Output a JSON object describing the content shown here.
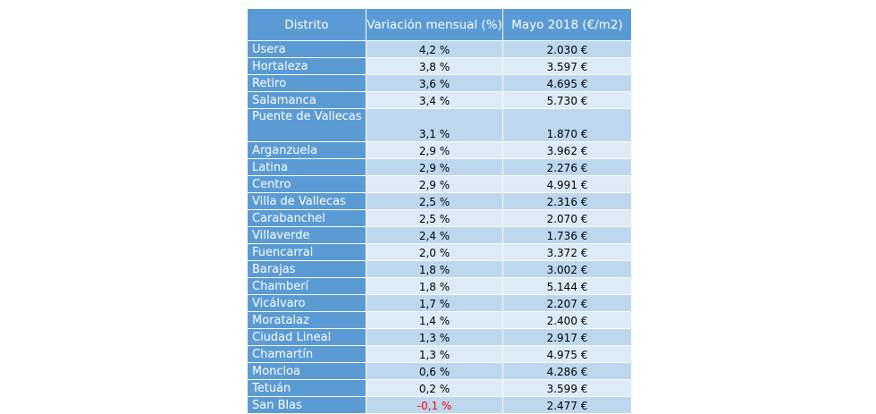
{
  "table": {
    "headers": [
      "Distrito",
      "Variación mensual (%)",
      "Mayo 2018 (€/m2)"
    ],
    "negative_color": "#ff0000",
    "header_color": "#5b9bd5",
    "rows": [
      {
        "district": "Usera",
        "variation": "4,2 %",
        "price": "2.030 €"
      },
      {
        "district": "Hortaleza",
        "variation": "3,8 %",
        "price": "3.597 €"
      },
      {
        "district": "Retiro",
        "variation": "3,6 %",
        "price": "4.695 €"
      },
      {
        "district": "Salamanca",
        "variation": "3,4 %",
        "price": "5.730 €"
      },
      {
        "district": "Puente de Vallecas",
        "variation": "3,1 %",
        "price": "1.870 €"
      },
      {
        "district": "Arganzuela",
        "variation": "2,9 %",
        "price": "3.962 €"
      },
      {
        "district": "Latina",
        "variation": "2,9 %",
        "price": "2.276 €"
      },
      {
        "district": "Centro",
        "variation": "2,9 %",
        "price": "4.991 €"
      },
      {
        "district": "Villa de Vallecas",
        "variation": "2,5 %",
        "price": "2.316 €"
      },
      {
        "district": "Carabanchel",
        "variation": "2,5 %",
        "price": "2.070 €"
      },
      {
        "district": "Villaverde",
        "variation": "2,4 %",
        "price": "1.736 €"
      },
      {
        "district": "Fuencarral",
        "variation": "2,0 %",
        "price": "3.372 €"
      },
      {
        "district": "Barajas",
        "variation": "1,8 %",
        "price": "3.002 €"
      },
      {
        "district": "Chamberí",
        "variation": "1,8 %",
        "price": "5.144 €"
      },
      {
        "district": "Vicálvaro",
        "variation": "1,7 %",
        "price": "2.207 €"
      },
      {
        "district": "Moratalaz",
        "variation": "1,4 %",
        "price": "2.400 €"
      },
      {
        "district": "Ciudad Lineal",
        "variation": "1,3 %",
        "price": "2.917 €"
      },
      {
        "district": "Chamartín",
        "variation": "1,3 %",
        "price": "4.975 €"
      },
      {
        "district": "Moncloa",
        "variation": "0,6 %",
        "price": "4.286 €"
      },
      {
        "district": "Tetuán",
        "variation": "0,2 %",
        "price": "3.599 €"
      },
      {
        "district": "San Blas",
        "variation": "-0,1 %",
        "price": "2.477 €"
      }
    ]
  }
}
